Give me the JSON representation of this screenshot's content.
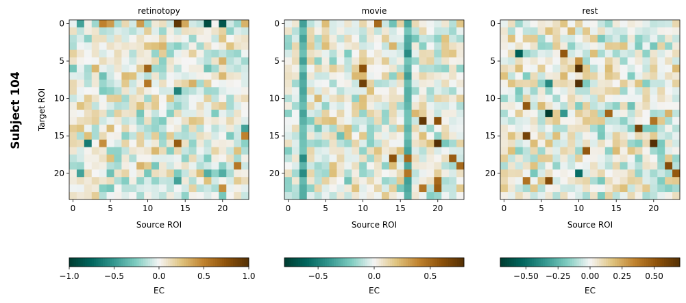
{
  "figure": {
    "row_label": "Subject 104"
  },
  "chart_data": [
    {
      "type": "heatmap",
      "title": "retinotopy",
      "xlabel": "Source ROI",
      "ylabel": "Target ROI",
      "n_rows": 24,
      "n_cols": 24,
      "x_ticks": [
        0,
        5,
        10,
        15,
        20
      ],
      "y_ticks": [
        0,
        5,
        10,
        15,
        20
      ],
      "colormap": "BrBG_r",
      "colorbar": {
        "label": "EC",
        "vmin": -1.0,
        "vmax": 1.0,
        "ticks": [
          -1.0,
          -0.5,
          0.0,
          0.5,
          1.0
        ],
        "tick_labels": [
          "−1.0",
          "−0.5",
          "0.0",
          "0.5",
          "1.0"
        ]
      },
      "highlights": [
        {
          "row": 0,
          "col": 14,
          "value": 0.95
        },
        {
          "row": 0,
          "col": 18,
          "value": -0.9
        },
        {
          "row": 0,
          "col": 20,
          "value": -0.85
        },
        {
          "row": 0,
          "col": 1,
          "value": -0.45
        },
        {
          "row": 0,
          "col": 4,
          "value": 0.5
        },
        {
          "row": 0,
          "col": 5,
          "value": 0.4
        },
        {
          "row": 0,
          "col": 9,
          "value": 0.4
        },
        {
          "row": 0,
          "col": 15,
          "value": 0.35
        },
        {
          "row": 6,
          "col": 10,
          "value": 0.65
        },
        {
          "row": 8,
          "col": 10,
          "value": 0.55
        },
        {
          "row": 9,
          "col": 14,
          "value": -0.6
        },
        {
          "row": 16,
          "col": 2,
          "value": -0.65
        },
        {
          "row": 16,
          "col": 14,
          "value": 0.7
        },
        {
          "row": 16,
          "col": 4,
          "value": 0.45
        },
        {
          "row": 15,
          "col": 23,
          "value": 0.5
        },
        {
          "row": 14,
          "col": 23,
          "value": -0.45
        },
        {
          "row": 19,
          "col": 22,
          "value": 0.55
        },
        {
          "row": 20,
          "col": 1,
          "value": -0.45
        },
        {
          "row": 21,
          "col": 14,
          "value": -0.45
        },
        {
          "row": 22,
          "col": 20,
          "value": 0.45
        },
        {
          "row": 20,
          "col": 20,
          "value": -0.4
        },
        {
          "row": 20,
          "col": 18,
          "value": -0.4
        }
      ]
    },
    {
      "type": "heatmap",
      "title": "movie",
      "xlabel": "Source ROI",
      "ylabel": "",
      "n_rows": 24,
      "n_cols": 24,
      "x_ticks": [
        0,
        5,
        10,
        15,
        20
      ],
      "y_ticks": [
        0,
        5,
        10,
        15,
        20
      ],
      "colormap": "BrBG_r",
      "colorbar": {
        "label": "EC",
        "vmin": -0.8,
        "vmax": 0.8,
        "ticks": [
          -0.5,
          0.0,
          0.5
        ],
        "tick_labels": [
          "−0.5",
          "0.0",
          "0.5"
        ]
      },
      "highlights": [
        {
          "row": 0,
          "col": 12,
          "value": 0.5
        },
        {
          "row": 6,
          "col": 10,
          "value": 0.6
        },
        {
          "row": 8,
          "col": 10,
          "value": 0.7
        },
        {
          "row": 4,
          "col": 16,
          "value": -0.45
        },
        {
          "row": 13,
          "col": 18,
          "value": 0.75
        },
        {
          "row": 13,
          "col": 20,
          "value": 0.6
        },
        {
          "row": 16,
          "col": 20,
          "value": 0.8
        },
        {
          "row": 18,
          "col": 14,
          "value": 0.6
        },
        {
          "row": 18,
          "col": 16,
          "value": 0.5
        },
        {
          "row": 18,
          "col": 22,
          "value": 0.55
        },
        {
          "row": 19,
          "col": 23,
          "value": 0.5
        },
        {
          "row": 20,
          "col": 16,
          "value": 0.45
        },
        {
          "row": 21,
          "col": 20,
          "value": 0.5
        },
        {
          "row": 22,
          "col": 18,
          "value": 0.45
        },
        {
          "row": 22,
          "col": 20,
          "value": 0.55
        },
        {
          "row": 9,
          "col": 2,
          "value": -0.35
        },
        {
          "row": 18,
          "col": 2,
          "value": -0.45
        },
        {
          "row": 20,
          "col": 2,
          "value": -0.45
        }
      ],
      "column_bands": [
        {
          "col": 2,
          "value": -0.3
        },
        {
          "col": 16,
          "value": -0.3
        }
      ]
    },
    {
      "type": "heatmap",
      "title": "rest",
      "xlabel": "Source ROI",
      "ylabel": "",
      "n_rows": 24,
      "n_cols": 24,
      "x_ticks": [
        0,
        5,
        10,
        15,
        20
      ],
      "y_ticks": [
        0,
        5,
        10,
        15,
        20
      ],
      "colormap": "BrBG_r",
      "colorbar": {
        "label": "EC",
        "vmin": -0.7,
        "vmax": 0.7,
        "ticks": [
          -0.5,
          -0.25,
          0.0,
          0.25,
          0.5
        ],
        "tick_labels": [
          "−0.50",
          "−0.25",
          "0.00",
          "0.25",
          "0.50"
        ]
      },
      "highlights": [
        {
          "row": 4,
          "col": 2,
          "value": -0.55
        },
        {
          "row": 4,
          "col": 8,
          "value": 0.5
        },
        {
          "row": 5,
          "col": 10,
          "value": 0.3
        },
        {
          "row": 6,
          "col": 10,
          "value": 0.7
        },
        {
          "row": 8,
          "col": 10,
          "value": 0.7
        },
        {
          "row": 8,
          "col": 6,
          "value": -0.4
        },
        {
          "row": 12,
          "col": 6,
          "value": -0.7
        },
        {
          "row": 11,
          "col": 3,
          "value": 0.5
        },
        {
          "row": 14,
          "col": 18,
          "value": 0.6
        },
        {
          "row": 15,
          "col": 3,
          "value": 0.6
        },
        {
          "row": 16,
          "col": 20,
          "value": 0.7
        },
        {
          "row": 17,
          "col": 11,
          "value": 0.5
        },
        {
          "row": 19,
          "col": 22,
          "value": 0.55
        },
        {
          "row": 20,
          "col": 10,
          "value": -0.5
        },
        {
          "row": 20,
          "col": 23,
          "value": 0.5
        },
        {
          "row": 21,
          "col": 6,
          "value": 0.55
        },
        {
          "row": 21,
          "col": 3,
          "value": 0.4
        },
        {
          "row": 12,
          "col": 8,
          "value": -0.35
        },
        {
          "row": 12,
          "col": 14,
          "value": 0.45
        },
        {
          "row": 13,
          "col": 20,
          "value": 0.4
        }
      ]
    }
  ]
}
